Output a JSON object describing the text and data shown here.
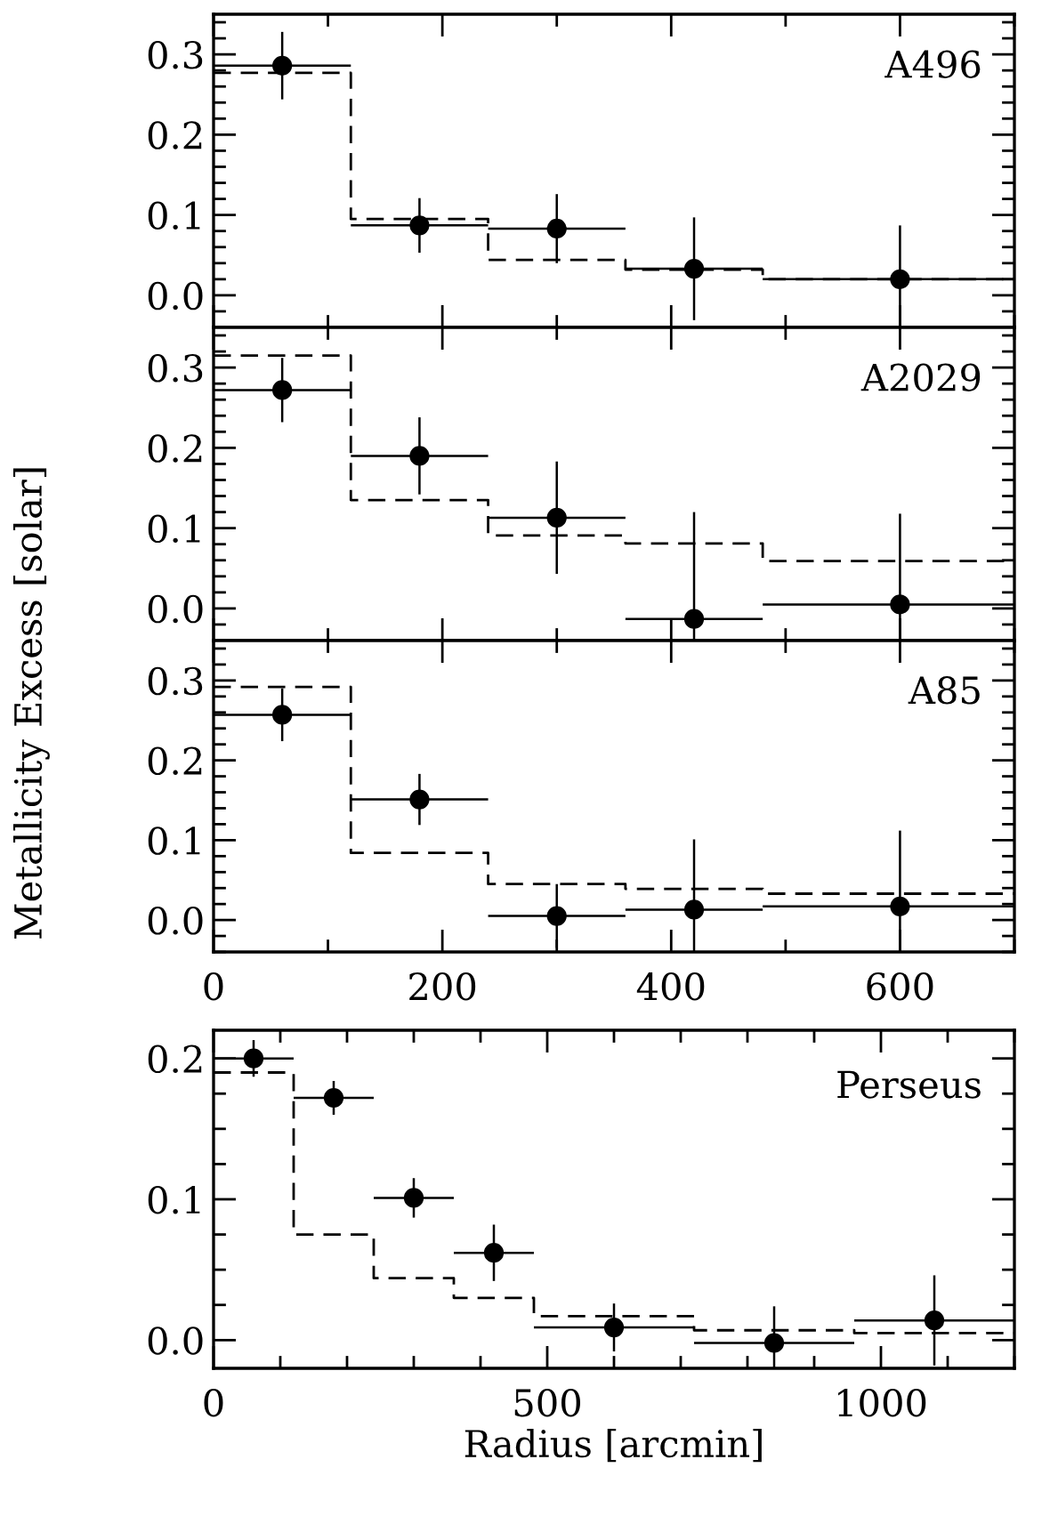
{
  "chart_data": [
    {
      "type": "scatter",
      "annotations": [
        "A496"
      ],
      "xlim": [
        0,
        700
      ],
      "ylim": [
        -0.04,
        0.35
      ],
      "xticks": [
        0,
        200,
        400,
        600
      ],
      "yticks": [
        {
          "value": 0,
          "label": "0.0"
        },
        {
          "value": 0.1,
          "label": "0.1"
        },
        {
          "value": 0.2,
          "label": "0.2"
        },
        {
          "value": 0.3,
          "label": "0.3"
        }
      ],
      "tick_labels": "y",
      "grid": false,
      "series": [
        {
          "type": "scatter",
          "marker": "circle",
          "color": "#000000",
          "x": [
            60,
            180,
            300,
            420,
            600
          ],
          "values": [
            0.286,
            0.087,
            0.083,
            0.033,
            0.02
          ],
          "errors": [
            0.042,
            0.034,
            0.043,
            0.064,
            [
              -0.04,
              0.087
            ]
          ],
          "xerrors": [
            60,
            60,
            60,
            60,
            [
              480,
              700
            ]
          ]
        },
        {
          "type": "step",
          "line_style": "dashed",
          "color": "#000000",
          "x": [
            0,
            120,
            240,
            360,
            480,
            700
          ],
          "values": [
            0.277,
            0.095,
            0.044,
            0.032,
            0.02,
            0.02
          ]
        }
      ]
    },
    {
      "type": "scatter",
      "annotations": [
        "A2029"
      ],
      "xlim": [
        0,
        700
      ],
      "ylim": [
        -0.04,
        0.35
      ],
      "xticks": [
        0,
        200,
        400,
        600
      ],
      "yticks": [
        {
          "value": 0,
          "label": "0.0"
        },
        {
          "value": 0.1,
          "label": "0.1"
        },
        {
          "value": 0.2,
          "label": "0.2"
        },
        {
          "value": 0.3,
          "label": "0.3"
        }
      ],
      "tick_labels": "y",
      "grid": false,
      "series": [
        {
          "type": "scatter",
          "marker": "circle",
          "color": "#000000",
          "x": [
            60,
            180,
            300,
            420,
            600
          ],
          "values": [
            0.272,
            0.19,
            0.113,
            -0.013,
            0.005
          ],
          "errors": [
            0.04,
            0.048,
            0.07,
            [
              -0.04,
              0.12
            ],
            [
              -0.04,
              0.118
            ]
          ],
          "xerrors": [
            60,
            60,
            60,
            60,
            [
              480,
              700
            ]
          ]
        },
        {
          "type": "step",
          "line_style": "dashed",
          "color": "#000000",
          "x": [
            0,
            120,
            240,
            360,
            480,
            700
          ],
          "values": [
            0.315,
            0.135,
            0.091,
            0.081,
            0.059,
            0.059
          ]
        }
      ]
    },
    {
      "type": "scatter",
      "annotations": [
        "A85"
      ],
      "xlim": [
        0,
        700
      ],
      "ylim": [
        -0.04,
        0.35
      ],
      "xticks": [
        0,
        200,
        400,
        600
      ],
      "yticks": [
        {
          "value": 0,
          "label": "0.0"
        },
        {
          "value": 0.1,
          "label": "0.1"
        },
        {
          "value": 0.2,
          "label": "0.2"
        },
        {
          "value": 0.3,
          "label": "0.3"
        }
      ],
      "grid": false,
      "series": [
        {
          "type": "scatter",
          "marker": "circle",
          "color": "#000000",
          "x": [
            60,
            180,
            300,
            420,
            600
          ],
          "values": [
            0.257,
            0.151,
            0.005,
            0.013,
            0.017
          ],
          "errors": [
            0.033,
            0.032,
            0.04,
            [
              -0.04,
              0.101
            ],
            [
              -0.04,
              0.112
            ]
          ],
          "xerrors": [
            60,
            60,
            60,
            60,
            [
              480,
              700
            ]
          ]
        },
        {
          "type": "step",
          "line_style": "dashed",
          "color": "#000000",
          "x": [
            0,
            120,
            240,
            360,
            480,
            700
          ],
          "values": [
            0.292,
            0.084,
            0.045,
            0.039,
            0.033,
            0.033
          ]
        }
      ]
    },
    {
      "type": "scatter",
      "annotations": [
        "Perseus"
      ],
      "xlabel": "Radius [arcmin]",
      "ylabel": "Metallicity Excess [solar]",
      "xlim": [
        0,
        1200
      ],
      "ylim": [
        -0.02,
        0.22
      ],
      "xticks": [
        0,
        500,
        1000
      ],
      "yticks": [
        {
          "value": 0,
          "label": "0.0"
        },
        {
          "value": 0.1,
          "label": "0.1"
        },
        {
          "value": 0.2,
          "label": "0.2"
        }
      ],
      "grid": false,
      "series": [
        {
          "type": "scatter",
          "marker": "circle",
          "color": "#000000",
          "x": [
            60,
            180,
            300,
            420,
            600,
            840,
            1080
          ],
          "values": [
            0.2,
            0.172,
            0.101,
            0.062,
            0.009,
            -0.002,
            0.014
          ],
          "errors": [
            0.013,
            0.012,
            0.014,
            0.02,
            0.017,
            [
              -0.02,
              0.024
            ],
            0.032
          ],
          "xerrors": [
            60,
            60,
            60,
            60,
            120,
            120,
            120
          ]
        },
        {
          "type": "step",
          "line_style": "dashed",
          "color": "#000000",
          "x": [
            0,
            120,
            240,
            360,
            480,
            720,
            960,
            1200
          ],
          "values": [
            0.19,
            0.075,
            0.044,
            0.03,
            0.017,
            0.007,
            0.005,
            0.005
          ]
        }
      ]
    }
  ]
}
